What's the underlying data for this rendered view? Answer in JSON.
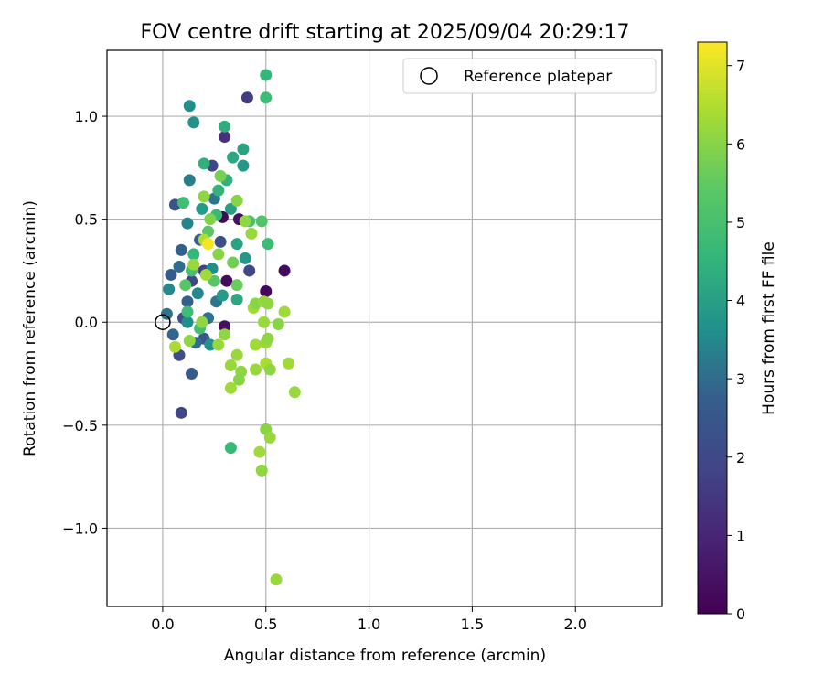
{
  "chart_data": {
    "type": "scatter",
    "title": "FOV centre drift starting at 2025/09/04 20:29:17",
    "xlabel": "Angular distance from reference (arcmin)",
    "ylabel": "Rotation from reference (arcmin)",
    "xlim": [
      -0.27,
      2.42
    ],
    "ylim": [
      -1.38,
      1.32
    ],
    "x_ticks": [
      0.0,
      0.5,
      1.0,
      1.5,
      2.0
    ],
    "x_tick_labels": [
      "0.0",
      "0.5",
      "1.0",
      "1.5",
      "2.0"
    ],
    "y_ticks": [
      -1.0,
      -0.5,
      0.0,
      0.5,
      1.0
    ],
    "y_tick_labels": [
      "−1.0",
      "−0.5",
      "0.0",
      "0.5",
      "1.0"
    ],
    "grid": true,
    "legend": {
      "placement": "top-right",
      "entries": [
        "Reference platepar"
      ]
    },
    "reference_point": {
      "x": 0.0,
      "y": 0.0,
      "label": "Reference platepar"
    },
    "colorbar": {
      "label": "Hours from first FF file",
      "colormap": "viridis",
      "min": 0,
      "max": 7.3,
      "ticks": [
        0,
        1,
        2,
        3,
        4,
        5,
        6,
        7
      ],
      "tick_labels": [
        "0",
        "1",
        "2",
        "3",
        "4",
        "5",
        "6",
        "7"
      ]
    },
    "points": [
      {
        "x": 0.29,
        "y": 0.51,
        "c": 0.2
      },
      {
        "x": 0.31,
        "y": 0.2,
        "c": 0.3
      },
      {
        "x": 0.5,
        "y": 0.15,
        "c": 0.2
      },
      {
        "x": 0.59,
        "y": 0.25,
        "c": 0.3
      },
      {
        "x": 0.37,
        "y": 0.5,
        "c": 0.4
      },
      {
        "x": 0.3,
        "y": -0.02,
        "c": 0.4
      },
      {
        "x": 0.3,
        "y": 0.9,
        "c": 1.3
      },
      {
        "x": 0.41,
        "y": 1.09,
        "c": 1.6
      },
      {
        "x": 0.09,
        "y": -0.44,
        "c": 1.9
      },
      {
        "x": 0.24,
        "y": 0.76,
        "c": 1.9
      },
      {
        "x": 0.28,
        "y": 0.39,
        "c": 2.2
      },
      {
        "x": 0.42,
        "y": 0.25,
        "c": 2.0
      },
      {
        "x": 0.08,
        "y": -0.16,
        "c": 2.1
      },
      {
        "x": 0.1,
        "y": 0.02,
        "c": 2.2
      },
      {
        "x": 0.06,
        "y": 0.57,
        "c": 2.4
      },
      {
        "x": 0.14,
        "y": 0.2,
        "c": 2.0
      },
      {
        "x": 0.2,
        "y": 0.25,
        "c": 1.8
      },
      {
        "x": 0.14,
        "y": -0.25,
        "c": 2.6
      },
      {
        "x": 0.2,
        "y": -0.08,
        "c": 2.5
      },
      {
        "x": 0.12,
        "y": 0.1,
        "c": 2.8
      },
      {
        "x": 0.04,
        "y": 0.23,
        "c": 2.6
      },
      {
        "x": 0.05,
        "y": -0.06,
        "c": 2.9
      },
      {
        "x": 0.16,
        "y": -0.1,
        "c": 3.0
      },
      {
        "x": 0.22,
        "y": 0.02,
        "c": 3.1
      },
      {
        "x": 0.25,
        "y": 0.6,
        "c": 3.2
      },
      {
        "x": 0.13,
        "y": 0.69,
        "c": 3.3
      },
      {
        "x": 0.12,
        "y": 0.48,
        "c": 3.4
      },
      {
        "x": 0.08,
        "y": 0.27,
        "c": 3.0
      },
      {
        "x": 0.03,
        "y": 0.16,
        "c": 3.5
      },
      {
        "x": 0.18,
        "y": 0.4,
        "c": 2.7
      },
      {
        "x": 0.02,
        "y": 0.04,
        "c": 3.1
      },
      {
        "x": 0.09,
        "y": 0.35,
        "c": 2.8
      },
      {
        "x": 0.26,
        "y": 0.1,
        "c": 3.2
      },
      {
        "x": 0.13,
        "y": 1.05,
        "c": 3.6
      },
      {
        "x": 0.15,
        "y": 0.97,
        "c": 3.7
      },
      {
        "x": 0.19,
        "y": 0.55,
        "c": 3.9
      },
      {
        "x": 0.24,
        "y": 0.26,
        "c": 3.6
      },
      {
        "x": 0.39,
        "y": 0.76,
        "c": 3.8
      },
      {
        "x": 0.39,
        "y": 0.84,
        "c": 4.1
      },
      {
        "x": 0.33,
        "y": 0.55,
        "c": 4.0
      },
      {
        "x": 0.36,
        "y": 0.11,
        "c": 4.2
      },
      {
        "x": 0.4,
        "y": 0.31,
        "c": 3.8
      },
      {
        "x": 0.36,
        "y": 0.38,
        "c": 4.1
      },
      {
        "x": 0.29,
        "y": 0.13,
        "c": 3.9
      },
      {
        "x": 0.23,
        "y": -0.11,
        "c": 3.7
      },
      {
        "x": 0.12,
        "y": 0.0,
        "c": 3.6
      },
      {
        "x": 0.17,
        "y": 0.14,
        "c": 3.5
      },
      {
        "x": 0.34,
        "y": 0.8,
        "c": 4.2
      },
      {
        "x": 0.31,
        "y": 0.69,
        "c": 4.4
      },
      {
        "x": 0.3,
        "y": 0.95,
        "c": 4.3
      },
      {
        "x": 0.2,
        "y": 0.77,
        "c": 4.4
      },
      {
        "x": 0.27,
        "y": 0.64,
        "c": 4.5
      },
      {
        "x": 0.5,
        "y": 1.2,
        "c": 4.6
      },
      {
        "x": 0.5,
        "y": 1.09,
        "c": 4.8
      },
      {
        "x": 0.26,
        "y": 0.52,
        "c": 4.7
      },
      {
        "x": 0.15,
        "y": 0.33,
        "c": 4.6
      },
      {
        "x": 0.1,
        "y": 0.58,
        "c": 4.9
      },
      {
        "x": 0.42,
        "y": 0.49,
        "c": 5.0
      },
      {
        "x": 0.33,
        "y": -0.61,
        "c": 4.7
      },
      {
        "x": 0.51,
        "y": 0.38,
        "c": 4.8
      },
      {
        "x": 0.12,
        "y": 0.05,
        "c": 4.8
      },
      {
        "x": 0.18,
        "y": -0.03,
        "c": 4.9
      },
      {
        "x": 0.14,
        "y": 0.25,
        "c": 5.0
      },
      {
        "x": 0.48,
        "y": 0.49,
        "c": 5.2
      },
      {
        "x": 0.22,
        "y": 0.44,
        "c": 5.4
      },
      {
        "x": 0.25,
        "y": 0.2,
        "c": 5.3
      },
      {
        "x": 0.11,
        "y": 0.18,
        "c": 5.3
      },
      {
        "x": 0.36,
        "y": 0.18,
        "c": 5.6
      },
      {
        "x": 0.34,
        "y": 0.29,
        "c": 5.7
      },
      {
        "x": 0.28,
        "y": 0.71,
        "c": 5.8
      },
      {
        "x": 0.36,
        "y": 0.59,
        "c": 6.0
      },
      {
        "x": 0.4,
        "y": 0.49,
        "c": 6.1
      },
      {
        "x": 0.43,
        "y": 0.43,
        "c": 6.2
      },
      {
        "x": 0.2,
        "y": 0.61,
        "c": 6.1
      },
      {
        "x": 0.23,
        "y": 0.5,
        "c": 5.9
      },
      {
        "x": 0.27,
        "y": 0.33,
        "c": 6.0
      },
      {
        "x": 0.21,
        "y": 0.23,
        "c": 6.3
      },
      {
        "x": 0.3,
        "y": -0.06,
        "c": 6.1
      },
      {
        "x": 0.36,
        "y": -0.16,
        "c": 6.2
      },
      {
        "x": 0.33,
        "y": -0.21,
        "c": 6.2
      },
      {
        "x": 0.38,
        "y": -0.24,
        "c": 6.1
      },
      {
        "x": 0.45,
        "y": -0.11,
        "c": 6.3
      },
      {
        "x": 0.5,
        "y": -0.1,
        "c": 6.2
      },
      {
        "x": 0.51,
        "y": -0.08,
        "c": 6.1
      },
      {
        "x": 0.44,
        "y": 0.07,
        "c": 6.3
      },
      {
        "x": 0.45,
        "y": 0.09,
        "c": 6.0
      },
      {
        "x": 0.49,
        "y": 0.1,
        "c": 6.2
      },
      {
        "x": 0.51,
        "y": 0.09,
        "c": 6.1
      },
      {
        "x": 0.59,
        "y": 0.05,
        "c": 6.3
      },
      {
        "x": 0.56,
        "y": -0.01,
        "c": 6.0
      },
      {
        "x": 0.49,
        "y": 0.0,
        "c": 6.2
      },
      {
        "x": 0.5,
        "y": -0.2,
        "c": 6.4
      },
      {
        "x": 0.52,
        "y": -0.23,
        "c": 6.1
      },
      {
        "x": 0.45,
        "y": -0.23,
        "c": 6.2
      },
      {
        "x": 0.61,
        "y": -0.2,
        "c": 6.3
      },
      {
        "x": 0.64,
        "y": -0.34,
        "c": 6.2
      },
      {
        "x": 0.5,
        "y": -0.52,
        "c": 6.0
      },
      {
        "x": 0.52,
        "y": -0.56,
        "c": 6.2
      },
      {
        "x": 0.47,
        "y": -0.63,
        "c": 6.3
      },
      {
        "x": 0.48,
        "y": -0.72,
        "c": 6.1
      },
      {
        "x": 0.55,
        "y": -1.25,
        "c": 6.2
      },
      {
        "x": 0.33,
        "y": -0.32,
        "c": 6.3
      },
      {
        "x": 0.37,
        "y": -0.28,
        "c": 6.0
      },
      {
        "x": 0.27,
        "y": -0.11,
        "c": 6.2
      },
      {
        "x": 0.19,
        "y": 0.0,
        "c": 6.1
      },
      {
        "x": 0.06,
        "y": -0.12,
        "c": 6.4
      },
      {
        "x": 0.13,
        "y": -0.09,
        "c": 6.1
      },
      {
        "x": 0.15,
        "y": 0.28,
        "c": 6.2
      },
      {
        "x": 0.2,
        "y": 0.4,
        "c": 6.5
      },
      {
        "x": 0.22,
        "y": 0.38,
        "c": 7.2
      }
    ]
  }
}
